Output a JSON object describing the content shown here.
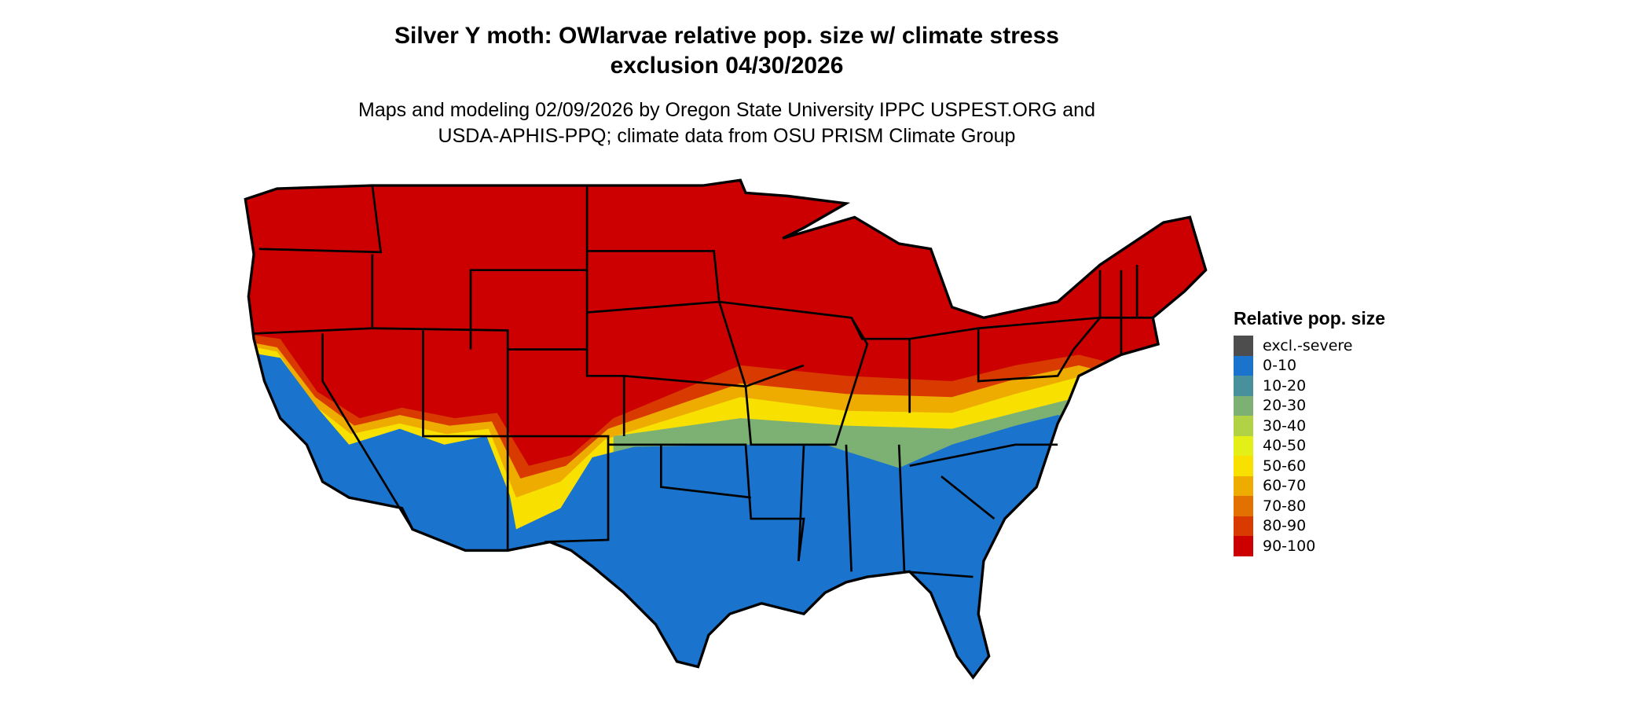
{
  "title": {
    "line1": "Silver Y moth: OWlarvae relative pop. size w/ climate stress",
    "line2": "exclusion 04/30/2026"
  },
  "subtitle": {
    "line1": "Maps and modeling 02/09/2026 by Oregon State University IPPC USPEST.ORG and",
    "line2": "USDA-APHIS-PPQ; climate data from OSU PRISM Climate Group"
  },
  "legend": {
    "title": "Relative pop. size",
    "items": [
      {
        "label": "excl.-severe",
        "color": "#4d4d4d"
      },
      {
        "label": "0-10",
        "color": "#1a73cc"
      },
      {
        "label": "10-20",
        "color": "#48919c"
      },
      {
        "label": "20-30",
        "color": "#7db173"
      },
      {
        "label": "30-40",
        "color": "#b2d246"
      },
      {
        "label": "40-50",
        "color": "#e3ef17"
      },
      {
        "label": "50-60",
        "color": "#f8e100"
      },
      {
        "label": "60-70",
        "color": "#eeab00"
      },
      {
        "label": "70-80",
        "color": "#e27100"
      },
      {
        "label": "80-90",
        "color": "#d83a00"
      },
      {
        "label": "90-100",
        "color": "#cc0000"
      }
    ]
  }
}
